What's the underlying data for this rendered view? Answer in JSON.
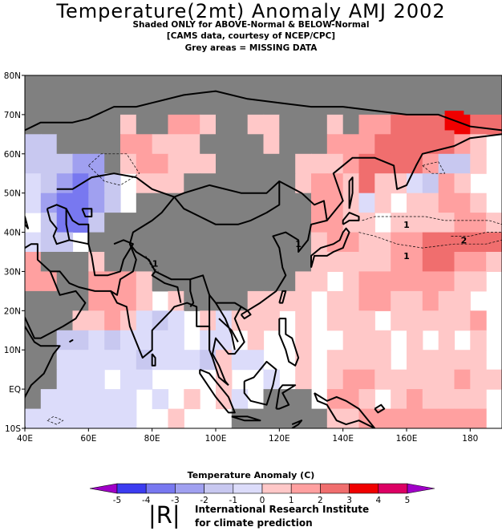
{
  "header": {
    "title": "Temperature(2mt) Anomaly AMJ 2002",
    "subtitle1": "Shaded ONLY for ABOVE-Normal & BELOW-Normal",
    "subtitle2": "[CAMS data, courtesy of NCEP/CPC]",
    "subtitle3": "Grey areas = MISSING DATA"
  },
  "map": {
    "lon_range": [
      40,
      190
    ],
    "lat_range": [
      -10,
      80
    ],
    "lon_ticks": [
      "40E",
      "60E",
      "80E",
      "100E",
      "120E",
      "140E",
      "160E",
      "180"
    ],
    "lat_ticks": [
      "10S",
      "EQ",
      "10N",
      "20N",
      "30N",
      "40N",
      "50N",
      "60N",
      "70N",
      "80N"
    ],
    "contour_labels": [
      "1",
      "1",
      "1",
      "1",
      "2"
    ],
    "colors": {
      "missing": "#808080",
      "ocean_neutral": "#ffffff"
    }
  },
  "legend": {
    "title": "Temperature  Anomaly (C)",
    "ticks": [
      "-5",
      "-4",
      "-3",
      "-2",
      "-1",
      "0",
      "1",
      "2",
      "3",
      "4",
      "5"
    ],
    "colors": [
      "#a000c8",
      "#3c3cf0",
      "#7878f0",
      "#a0a0f0",
      "#c8c8f0",
      "#dcdcfa",
      "#ffc8c8",
      "#ffa0a0",
      "#f06e6e",
      "#f00000",
      "#dc0064",
      "#a000c8"
    ]
  },
  "branding": {
    "logo_text": "|R|",
    "org_line1": "International Research Institute",
    "org_line2": "for climate prediction"
  }
}
